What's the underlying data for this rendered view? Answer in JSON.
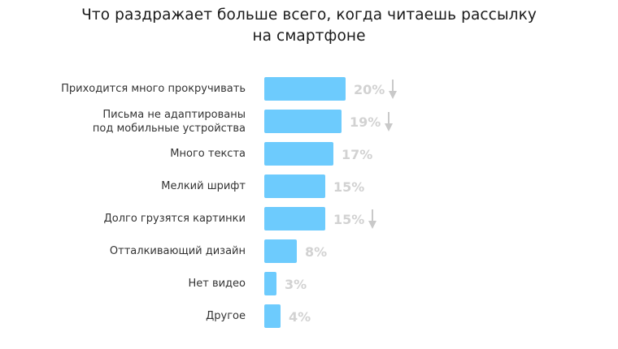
{
  "title": {
    "line1": "Что раздражает больше всего, когда читаешь рассылку",
    "line2": "на смартфоне"
  },
  "colors": {
    "bar": "#6dcbfd",
    "value_text": "#d2d2d2",
    "arrow": "#c9c9c9",
    "label_text": "#333333"
  },
  "rows": [
    {
      "label": "Приходится много прокручивать",
      "value": 20,
      "value_label": "20%",
      "trend": "down"
    },
    {
      "label": "Письма не адаптированы под мобильные устройства",
      "label_lines": [
        "Письма не адаптированы",
        "под мобильные устройства"
      ],
      "value": 19,
      "value_label": "19%",
      "trend": "down"
    },
    {
      "label": "Много текста",
      "value": 17,
      "value_label": "17%",
      "trend": null
    },
    {
      "label": "Мелкий шрифт",
      "value": 15,
      "value_label": "15%",
      "trend": null
    },
    {
      "label": "Долго грузятся картинки",
      "value": 15,
      "value_label": "15%",
      "trend": "down"
    },
    {
      "label": "Отталкивающий дизайн",
      "value": 8,
      "value_label": "8%",
      "trend": null
    },
    {
      "label": "Нет видео",
      "value": 3,
      "value_label": "3%",
      "trend": null
    },
    {
      "label": "Другое",
      "value": 4,
      "value_label": "4%",
      "trend": null
    }
  ],
  "chart_data": {
    "type": "bar",
    "orientation": "horizontal",
    "title": "Что раздражает больше всего, когда читаешь рассылку на смартфоне",
    "categories": [
      "Приходится много прокручивать",
      "Письма не адаптированы под мобильные устройства",
      "Много текста",
      "Мелкий шрифт",
      "Долго грузятся картинки",
      "Отталкивающий дизайн",
      "Нет видео",
      "Другое"
    ],
    "values": [
      20,
      19,
      17,
      15,
      15,
      8,
      3,
      4
    ],
    "value_labels": [
      "20%",
      "19%",
      "17%",
      "15%",
      "15%",
      "8%",
      "3%",
      "4%"
    ],
    "annotations": [
      {
        "category": "Приходится много прокручивать",
        "marker": "down-arrow"
      },
      {
        "category": "Письма не адаптированы под мобильные устройства",
        "marker": "down-arrow"
      },
      {
        "category": "Долго грузятся картинки",
        "marker": "down-arrow"
      }
    ],
    "xlabel": "",
    "ylabel": "",
    "unit": "%",
    "grid": false,
    "legend": null
  }
}
